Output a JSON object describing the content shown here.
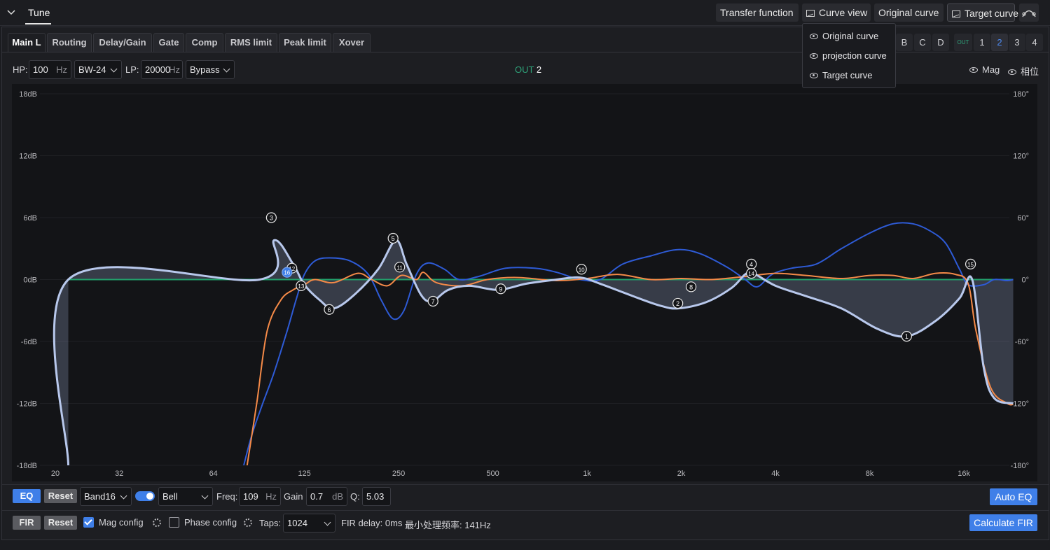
{
  "header": {
    "tab_label": "Tune",
    "transfer_function": "Transfer function",
    "curve_view": "Curve view",
    "original_curve": "Original curve",
    "target_curve": "Target curve"
  },
  "curve_menu": {
    "items": [
      {
        "label": "Original curve",
        "icon": "eye-icon"
      },
      {
        "label": "projection curve",
        "icon": "eye-icon"
      },
      {
        "label": "Target curve",
        "icon": "eye-icon"
      }
    ]
  },
  "tabs": [
    {
      "label": "Main L",
      "active": true
    },
    {
      "label": "Routing"
    },
    {
      "label": "Delay/Gain"
    },
    {
      "label": "Gate"
    },
    {
      "label": "Comp"
    },
    {
      "label": "RMS limit"
    },
    {
      "label": "Peak limit"
    },
    {
      "label": "Xover"
    }
  ],
  "channel_groups": [
    "B",
    "C",
    "D"
  ],
  "outputs": {
    "tag": "OUT",
    "items": [
      "1",
      "2",
      "3",
      "4"
    ],
    "selected": "2"
  },
  "filters": {
    "hp_label": "HP:",
    "hp_value": "100",
    "hp_unit": "Hz",
    "hp_type": "BW-24",
    "lp_label": "LP:",
    "lp_value": "20000",
    "lp_unit": "Hz",
    "lp_type": "Bypass"
  },
  "out_indicator": {
    "prefix": "OUT",
    "number": "2"
  },
  "view_toggles": {
    "mag": "Mag",
    "phase": "相位"
  },
  "chart_data": {
    "type": "line",
    "x_scale": "log",
    "x_ticks": [
      "20",
      "32",
      "64",
      "125",
      "250",
      "500",
      "1k",
      "2k",
      "4k",
      "8k",
      "16k"
    ],
    "x_tick_values": [
      20,
      32,
      64,
      125,
      250,
      500,
      1000,
      2000,
      4000,
      8000,
      16000
    ],
    "y_left_ticks": [
      "18dB",
      "12dB",
      "6dB",
      "0dB",
      "-6dB",
      "-12dB",
      "-18dB"
    ],
    "y_left_values": [
      18,
      12,
      6,
      0,
      -6,
      -12,
      -18
    ],
    "y_right_ticks": [
      "180°",
      "120°",
      "60°",
      "0°",
      "-60°",
      "-120°",
      "-180°"
    ],
    "ylim": [
      -18,
      18
    ],
    "xlim": [
      20,
      24000
    ],
    "series": [
      {
        "color": "#b8c8ec",
        "points": [
          [
            22,
            -18
          ],
          [
            22,
            0
          ],
          [
            90,
            0
          ],
          [
            100,
            3.8
          ],
          [
            115,
            1.5
          ],
          [
            125,
            -0.5
          ],
          [
            140,
            -2.0
          ],
          [
            155,
            -2.8
          ],
          [
            180,
            -1.5
          ],
          [
            215,
            1.0
          ],
          [
            245,
            3.8
          ],
          [
            265,
            1.5
          ],
          [
            295,
            -1.5
          ],
          [
            320,
            -2.1
          ],
          [
            360,
            -1.0
          ],
          [
            420,
            -0.6
          ],
          [
            520,
            -1.0
          ],
          [
            640,
            -0.4
          ],
          [
            800,
            0.0
          ],
          [
            950,
            0.2
          ],
          [
            1100,
            -0.4
          ],
          [
            1400,
            -1.6
          ],
          [
            1700,
            -2.5
          ],
          [
            1950,
            -2.8
          ],
          [
            2400,
            -2.2
          ],
          [
            2900,
            -0.8
          ],
          [
            3200,
            0.5
          ],
          [
            3400,
            0.6
          ],
          [
            4000,
            -0.6
          ],
          [
            5000,
            -1.6
          ],
          [
            6500,
            -2.8
          ],
          [
            8500,
            -4.8
          ],
          [
            10500,
            -5.5
          ],
          [
            13000,
            -4.0
          ],
          [
            15500,
            -1.8
          ],
          [
            17000,
            0.0
          ],
          [
            18500,
            -8.5
          ],
          [
            20000,
            -11.5
          ],
          [
            23000,
            -12.0
          ]
        ]
      },
      {
        "color": "#2e5bd6",
        "points": [
          [
            80,
            -18
          ],
          [
            85,
            -15
          ],
          [
            92,
            -12
          ],
          [
            100,
            -9
          ],
          [
            110,
            -5
          ],
          [
            118,
            -1.8
          ],
          [
            125,
            0.5
          ],
          [
            135,
            1.8
          ],
          [
            150,
            2.1
          ],
          [
            175,
            1.8
          ],
          [
            200,
            0.5
          ],
          [
            220,
            -2.0
          ],
          [
            240,
            -3.8
          ],
          [
            260,
            -3.0
          ],
          [
            285,
            0.5
          ],
          [
            310,
            1.6
          ],
          [
            350,
            1.0
          ],
          [
            390,
            0.0
          ],
          [
            450,
            0.3
          ],
          [
            550,
            1.1
          ],
          [
            680,
            1.1
          ],
          [
            800,
            0.7
          ],
          [
            950,
            0.0
          ],
          [
            1100,
            0.0
          ],
          [
            1300,
            1.5
          ],
          [
            1600,
            2.3
          ],
          [
            1950,
            2.9
          ],
          [
            2300,
            2.5
          ],
          [
            2800,
            1.2
          ],
          [
            3200,
            0.0
          ],
          [
            3500,
            -0.7
          ],
          [
            3900,
            0.5
          ],
          [
            4500,
            1.1
          ],
          [
            5400,
            1.5
          ],
          [
            6500,
            3.0
          ],
          [
            8000,
            4.5
          ],
          [
            9500,
            5.4
          ],
          [
            11000,
            5.4
          ],
          [
            12500,
            4.7
          ],
          [
            14000,
            3.5
          ],
          [
            15500,
            1.0
          ],
          [
            16500,
            -0.5
          ],
          [
            18500,
            -0.5
          ],
          [
            20000,
            0.0
          ],
          [
            22000,
            -0.1
          ],
          [
            23000,
            0.0
          ]
        ]
      },
      {
        "color": "#f58a48",
        "points": [
          [
            82,
            -18
          ],
          [
            88,
            -12
          ],
          [
            95,
            -5
          ],
          [
            105,
            -2
          ],
          [
            115,
            -1.0
          ],
          [
            125,
            -0.5
          ],
          [
            135,
            0.0
          ],
          [
            155,
            -0.3
          ],
          [
            185,
            0.6
          ],
          [
            205,
            0.0
          ],
          [
            230,
            -0.6
          ],
          [
            255,
            0.4
          ],
          [
            285,
            0.0
          ],
          [
            300,
            0.7
          ],
          [
            330,
            -0.3
          ],
          [
            400,
            -0.6
          ],
          [
            480,
            0.0
          ],
          [
            600,
            0.2
          ],
          [
            800,
            -0.1
          ],
          [
            1000,
            0.1
          ],
          [
            1250,
            0.5
          ],
          [
            1600,
            0.0
          ],
          [
            2000,
            0.1
          ],
          [
            2500,
            0.0
          ],
          [
            3200,
            0.3
          ],
          [
            4000,
            0.6
          ],
          [
            5000,
            0.4
          ],
          [
            6500,
            0.1
          ],
          [
            8000,
            0.4
          ],
          [
            9500,
            0.4
          ],
          [
            11000,
            0.1
          ],
          [
            13000,
            0.6
          ],
          [
            15000,
            0.5
          ],
          [
            16500,
            -0.4
          ],
          [
            17500,
            -5
          ],
          [
            19500,
            -10.5
          ],
          [
            22000,
            -12.0
          ],
          [
            23000,
            -12.1
          ]
        ]
      },
      {
        "color": "#22a06b",
        "points": [
          [
            22,
            0
          ],
          [
            23000,
            0
          ]
        ]
      }
    ],
    "markers": [
      {
        "label": "1",
        "x": 10500,
        "y": -5.5
      },
      {
        "label": "2",
        "x": 1950,
        "y": -2.3
      },
      {
        "label": "3",
        "x": 98,
        "y": 6.0
      },
      {
        "label": "4",
        "x": 3350,
        "y": 1.5
      },
      {
        "label": "5",
        "x": 240,
        "y": 4.0
      },
      {
        "label": "6",
        "x": 150,
        "y": -2.9
      },
      {
        "label": "7",
        "x": 322,
        "y": -2.1
      },
      {
        "label": "8",
        "x": 2150,
        "y": -0.7
      },
      {
        "label": "9",
        "x": 530,
        "y": -0.9
      },
      {
        "label": "10",
        "x": 960,
        "y": 1.0
      },
      {
        "label": "11",
        "x": 252,
        "y": 1.2
      },
      {
        "label": "12",
        "x": 114,
        "y": 1.1
      },
      {
        "label": "13",
        "x": 122,
        "y": -0.6
      },
      {
        "label": "14",
        "x": 3350,
        "y": 0.6
      },
      {
        "label": "15",
        "x": 16800,
        "y": 1.5
      },
      {
        "label": "16",
        "x": 110,
        "y": 0.7,
        "selected": true
      }
    ]
  },
  "eq_row": {
    "eq_label": "EQ",
    "reset_label": "Reset",
    "band": "Band16",
    "filter_type": "Bell",
    "freq_label": "Freq:",
    "freq_value": "109",
    "freq_unit": "Hz",
    "gain_label": "Gain",
    "gain_value": "0.7",
    "gain_unit": "dB",
    "q_label": "Q:",
    "q_value": "5.03",
    "auto_eq": "Auto EQ"
  },
  "fir_row": {
    "fir_label": "FIR",
    "reset_label": "Reset",
    "mag_config": "Mag config",
    "phase_config": "Phase config",
    "taps_label": "Taps:",
    "taps_value": "1024",
    "fir_delay": "FIR delay: 0ms",
    "min_freq": "最小处理频率: 141Hz",
    "calculate": "Calculate FIR"
  }
}
